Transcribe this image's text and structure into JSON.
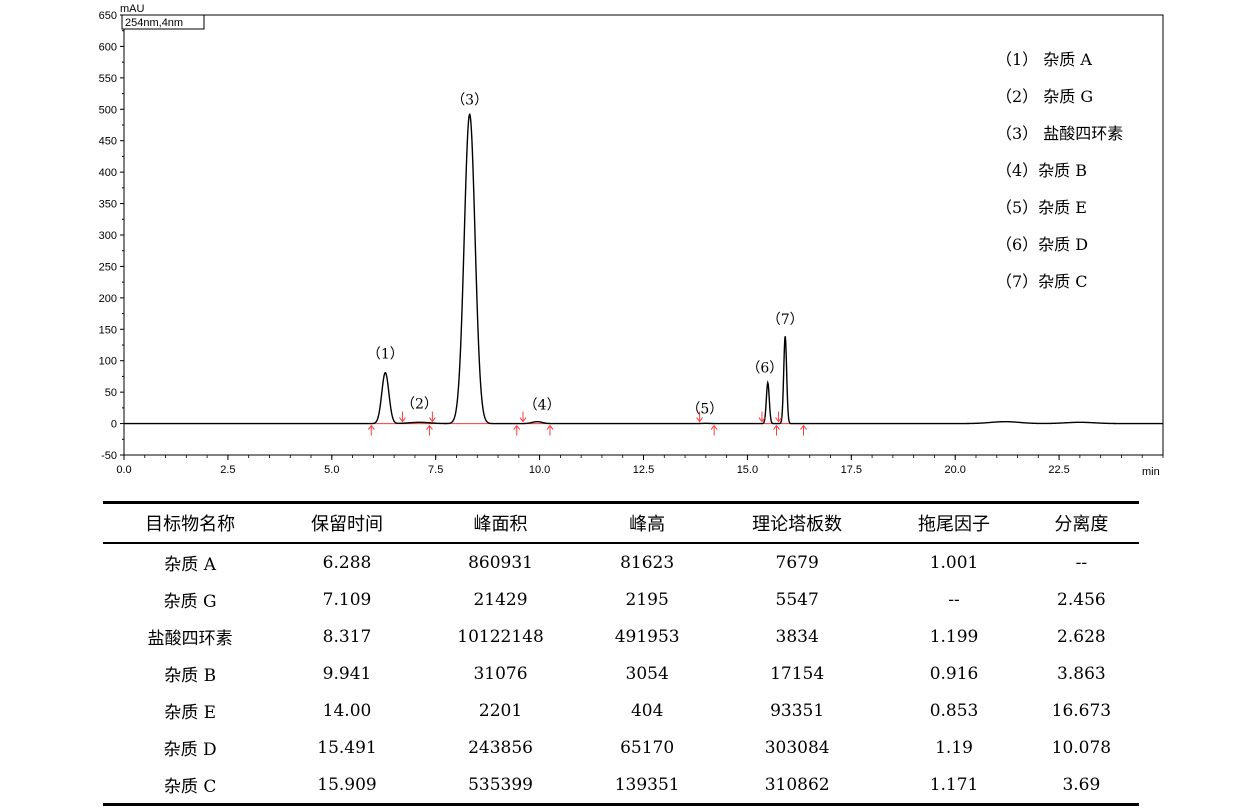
{
  "chart_data": {
    "type": "line",
    "ylabel": "mAU",
    "xlabel": "min",
    "wavelength_box": "254nm,4nm",
    "xlim": [
      0,
      25.0
    ],
    "ylim": [
      -50,
      650
    ],
    "x_ticks": [
      "0.0",
      "2.5",
      "5.0",
      "7.5",
      "10.0",
      "12.5",
      "15.0",
      "17.5",
      "20.0",
      "22.5"
    ],
    "y_ticks": [
      "-50",
      "0",
      "50",
      "100",
      "150",
      "200",
      "250",
      "300",
      "350",
      "400",
      "450",
      "500",
      "550",
      "600",
      "650"
    ],
    "peaks": [
      {
        "label": "（1）",
        "rt": 6.288,
        "height": 81
      },
      {
        "label": "（2）",
        "rt": 7.109,
        "height": 2
      },
      {
        "label": "（3）",
        "rt": 8.317,
        "height": 492
      },
      {
        "label": "（4）",
        "rt": 9.941,
        "height": 3
      },
      {
        "label": "（5）",
        "rt": 14.0,
        "height": 0.4
      },
      {
        "label": "（6）",
        "rt": 15.491,
        "height": 65
      },
      {
        "label": "（7）",
        "rt": 15.909,
        "height": 139
      }
    ],
    "integration_markers": [
      5.95,
      6.7,
      7.35,
      7.42,
      9.45,
      9.6,
      10.25,
      13.85,
      14.2,
      15.35,
      15.7,
      15.75,
      16.35
    ],
    "legend": [
      "（1）  杂质 A",
      "（2）  杂质 G",
      "（3） 盐酸四环素",
      "（4）杂质 B",
      "（5）杂质 E",
      "（6）杂质 D",
      "（7）杂质 C"
    ]
  },
  "table": {
    "headers": [
      "目标物名称",
      "保留时间",
      "峰面积",
      "峰高",
      "理论塔板数",
      "拖尾因子",
      "分离度"
    ],
    "rows": [
      [
        "杂质 A",
        "6.288",
        "860931",
        "81623",
        "7679",
        "1.001",
        "--"
      ],
      [
        "杂质 G",
        "7.109",
        "21429",
        "2195",
        "5547",
        "--",
        "2.456"
      ],
      [
        "盐酸四环素",
        "8.317",
        "10122148",
        "491953",
        "3834",
        "1.199",
        "2.628"
      ],
      [
        "杂质 B",
        "9.941",
        "31076",
        "3054",
        "17154",
        "0.916",
        "3.863"
      ],
      [
        "杂质 E",
        "14.00",
        "2201",
        "404",
        "93351",
        "0.853",
        "16.673"
      ],
      [
        "杂质 D",
        "15.491",
        "243856",
        "65170",
        "303084",
        "1.19",
        "10.078"
      ],
      [
        "杂质 C",
        "15.909",
        "535399",
        "139351",
        "310862",
        "1.171",
        "3.69"
      ]
    ]
  }
}
